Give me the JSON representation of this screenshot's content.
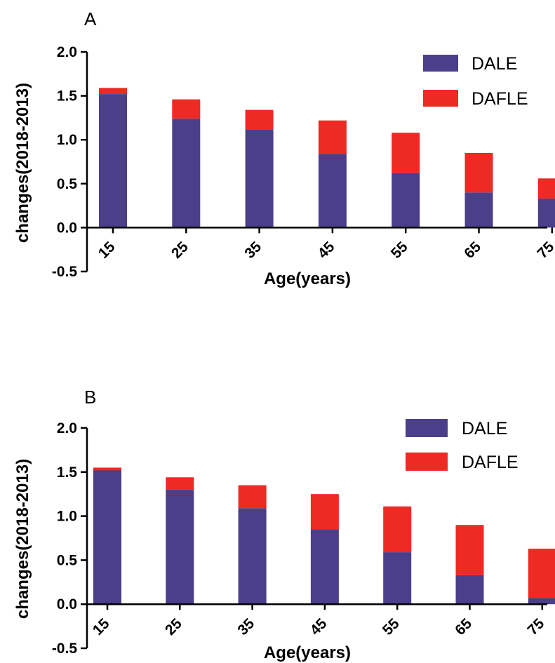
{
  "chart_data": [
    {
      "type": "bar",
      "stacked": true,
      "panel_label": "A",
      "categories": [
        "15",
        "25",
        "35",
        "45",
        "55",
        "65",
        "75"
      ],
      "series": [
        {
          "name": "DALE",
          "color": "#4b3f8a",
          "values": [
            1.52,
            1.24,
            1.12,
            0.84,
            0.62,
            0.4,
            0.33
          ]
        },
        {
          "name": "DAFLE",
          "color": "#ee2a24",
          "values": [
            0.07,
            0.22,
            0.22,
            0.38,
            0.46,
            0.45,
            0.23
          ]
        }
      ],
      "xlabel": "Age(years)",
      "ylabel": "changes(2018-2013)",
      "ylim": [
        -0.5,
        2.0
      ],
      "yticks": [
        "2.0",
        "1.5",
        "1.0",
        "0.5",
        "0.0",
        "-0.5"
      ],
      "legend_position": "top-right"
    },
    {
      "type": "bar",
      "stacked": true,
      "panel_label": "B",
      "categories": [
        "15",
        "25",
        "35",
        "45",
        "55",
        "65",
        "75"
      ],
      "series": [
        {
          "name": "DALE",
          "color": "#4b3f8a",
          "values": [
            1.55,
            1.3,
            1.09,
            0.85,
            0.59,
            0.33,
            0.07
          ]
        },
        {
          "name": "DAFLE",
          "color": "#ee2a24",
          "values": [
            -0.03,
            0.14,
            0.26,
            0.4,
            0.52,
            0.57,
            0.56
          ]
        }
      ],
      "xlabel": "Age(years)",
      "ylabel": "changes(2018-2013)",
      "ylim": [
        -0.5,
        2.0
      ],
      "yticks": [
        "2.0",
        "1.5",
        "1.0",
        "0.5",
        "0.0",
        "-0.5"
      ],
      "legend_position": "top-right"
    }
  ]
}
